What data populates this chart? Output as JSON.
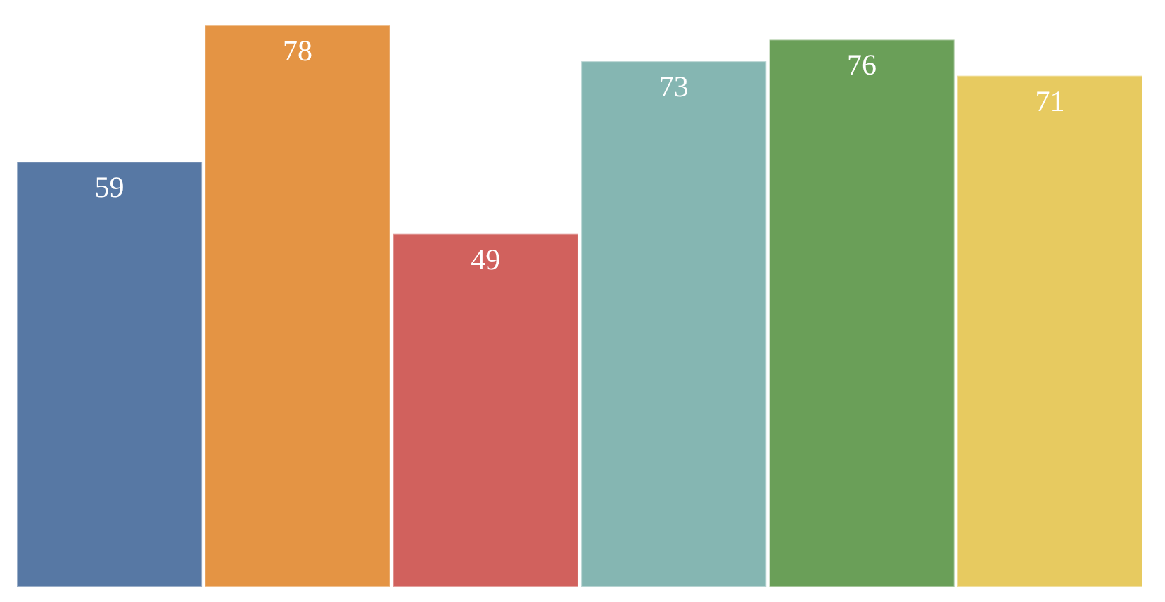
{
  "chart_data": {
    "type": "bar",
    "categories": [
      null,
      null,
      null,
      null,
      null,
      null
    ],
    "values": [
      59,
      78,
      49,
      73,
      76,
      71
    ],
    "colors": [
      "#5778a4",
      "#e49444",
      "#d1615d",
      "#85b6b2",
      "#6a9f58",
      "#e7ca60"
    ],
    "data_labels": true
  }
}
